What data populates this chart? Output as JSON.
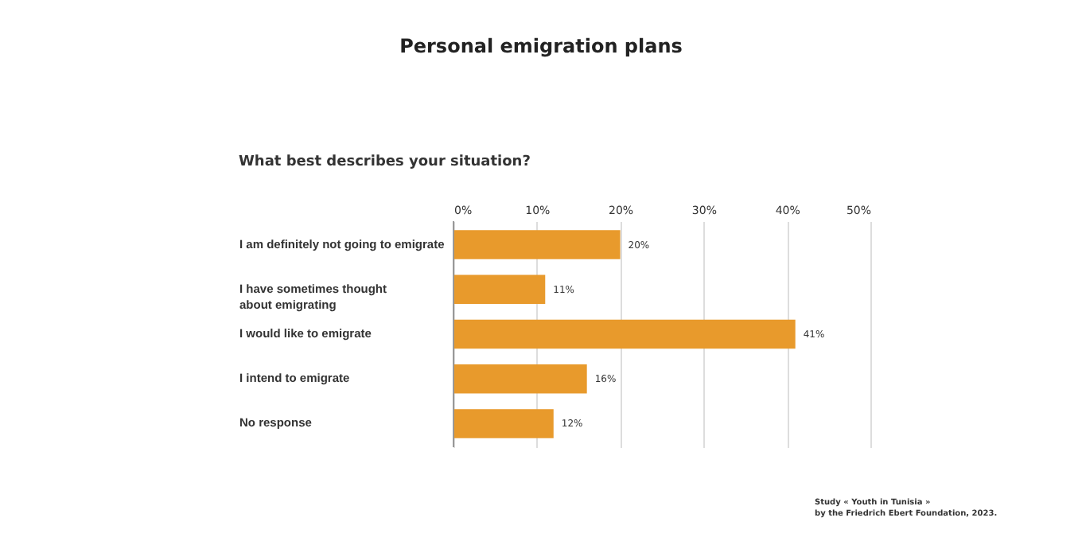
{
  "chart_data": {
    "type": "bar",
    "orientation": "horizontal",
    "title": "Personal emigration plans",
    "subtitle": "What best describes your situation?",
    "categories": [
      "I am definitely not going to emigrate",
      "I have sometimes thought about emigrating",
      "I would like to emigrate",
      "I intend to emigrate",
      "No response"
    ],
    "values": [
      20,
      11,
      41,
      16,
      12
    ],
    "color": "#e89a2c",
    "value_labels": [
      "20%",
      "11%",
      "41%",
      "16%",
      "12%"
    ],
    "xlim": [
      0,
      50
    ],
    "xticks": [
      {
        "value": 0,
        "label": "0%"
      },
      {
        "value": 10,
        "label": "10%"
      },
      {
        "value": 20,
        "label": "20%"
      },
      {
        "value": 30,
        "label": "30%"
      },
      {
        "value": 40,
        "label": "40%"
      },
      {
        "value": 50,
        "label": "50%"
      }
    ],
    "grid": "x",
    "annotations": [
      "Study « Youth in Tunisia »\nby the Friedrich Ebert Foundation, 2023."
    ]
  }
}
